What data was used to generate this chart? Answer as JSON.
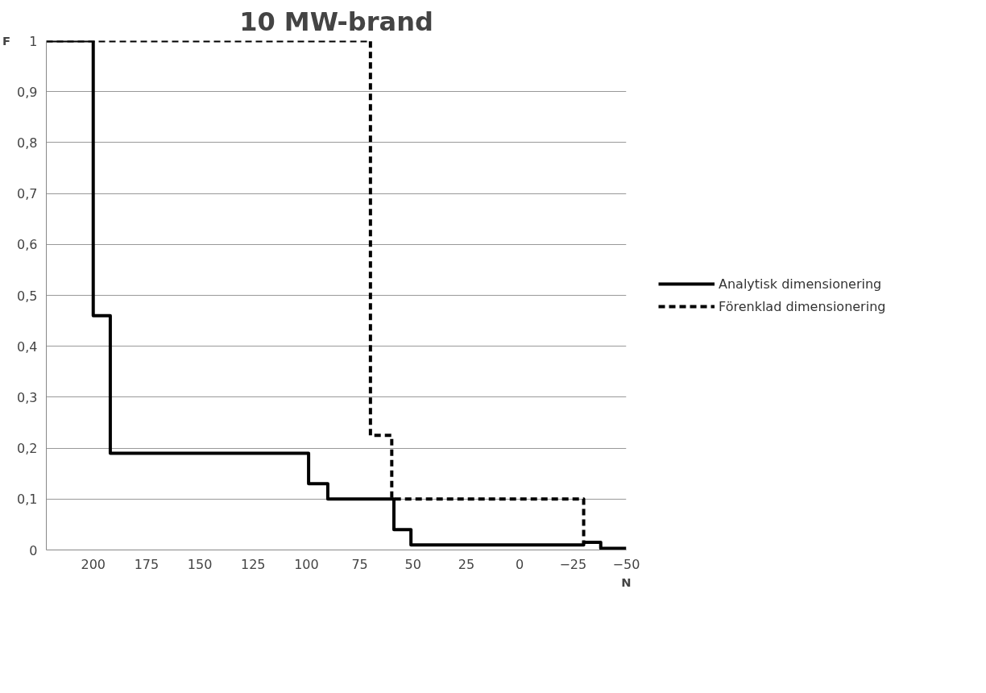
{
  "chart_data": {
    "type": "step",
    "title": "10 MW-brand",
    "xlabel": "N",
    "ylabel": "F",
    "xlim": [
      222,
      -50
    ],
    "xticks": [
      200,
      175,
      150,
      125,
      100,
      75,
      50,
      25,
      0,
      -25,
      -50
    ],
    "ylim": [
      0,
      1
    ],
    "yticks": [
      0,
      {
        "value": 0.1,
        "label": "0,1"
      },
      {
        "value": 0.2,
        "label": "0,2"
      },
      {
        "value": 0.3,
        "label": "0,3"
      },
      {
        "value": 0.4,
        "label": "0,4"
      },
      {
        "value": 0.5,
        "label": "0,5"
      },
      {
        "value": 0.6,
        "label": "0,6"
      },
      {
        "value": 0.7,
        "label": "0,7"
      },
      {
        "value": 0.8,
        "label": "0,8"
      },
      {
        "value": 0.9,
        "label": "0,9"
      },
      1
    ],
    "grid": "y",
    "legend": "right",
    "marker": "none",
    "series": [
      {
        "name": "Analytisk dimensionering",
        "color": "#000000",
        "line_style": "solid",
        "x": [
          222,
          200,
          192,
          99,
          90,
          59,
          51,
          -30,
          -38,
          -50
        ],
        "values": [
          1,
          0.46,
          0.19,
          0.13,
          0.1,
          0.04,
          0.01,
          0.015,
          0.003,
          0.003
        ]
      },
      {
        "name": "Förenklad dimensionering",
        "color": "#000000",
        "line_style": "dashed",
        "x": [
          222,
          70,
          60,
          -30,
          -38
        ],
        "values": [
          1,
          0.225,
          0.1,
          0.015,
          0.015
        ]
      }
    ]
  }
}
